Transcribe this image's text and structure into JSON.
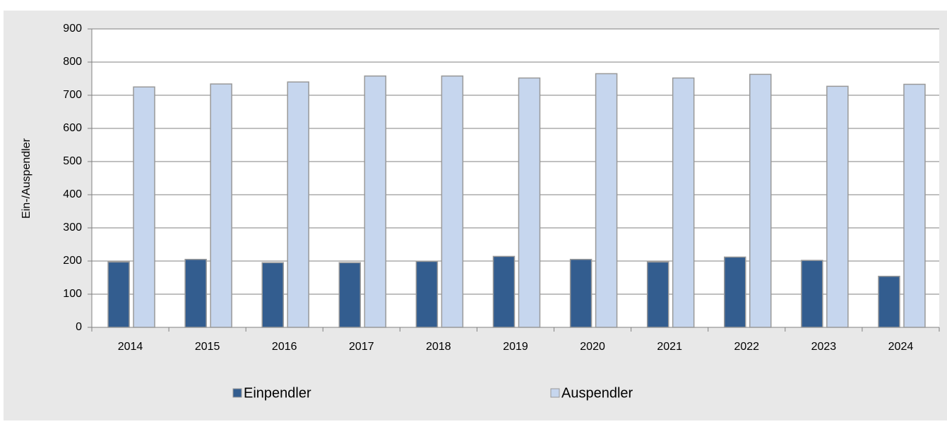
{
  "chart_data": {
    "type": "bar",
    "y_label": "Ein-/Auspendler",
    "categories": [
      "2014",
      "2015",
      "2016",
      "2017",
      "2018",
      "2019",
      "2020",
      "2021",
      "2022",
      "2023",
      "2024"
    ],
    "series": [
      {
        "name": "Einpendler",
        "color": "#335d8f",
        "values": [
          197,
          205,
          195,
          195,
          199,
          214,
          205,
          197,
          212,
          202,
          154
        ]
      },
      {
        "name": "Auspendler",
        "color": "#c6d6ee",
        "values": [
          725,
          734,
          740,
          758,
          758,
          752,
          765,
          752,
          763,
          727,
          733
        ]
      }
    ],
    "ylim": [
      0,
      900
    ],
    "yticks": [
      0,
      100,
      200,
      300,
      400,
      500,
      600,
      700,
      800,
      900
    ],
    "grid": true
  }
}
